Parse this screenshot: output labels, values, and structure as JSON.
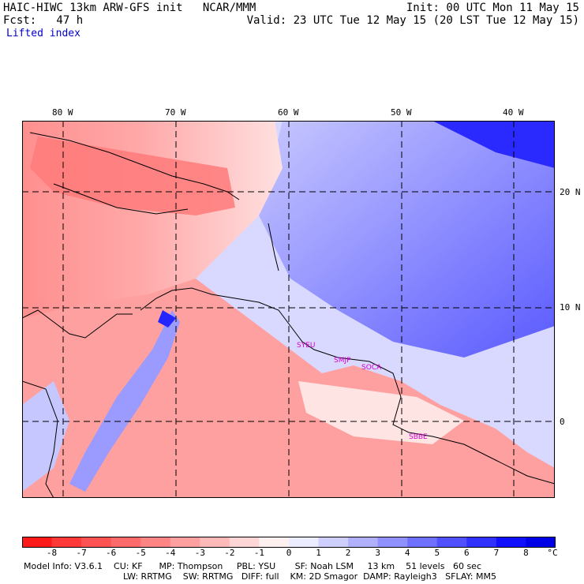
{
  "header": {
    "model_line": "HAIC-HIWC 13km ARW-GFS init   NCAR/MMM",
    "fcst_line": "Fcst:   47 h",
    "init_line": "Init: 00 UTC Mon 11 May 15",
    "valid_line": "Valid: 23 UTC Tue 12 May 15 (20 LST Tue 12 May 15)",
    "field": "Lifted index"
  },
  "map": {
    "lon_labels": [
      "80 W",
      "70 W",
      "60 W",
      "50 W",
      "40 W"
    ],
    "lat_labels": [
      "20 N",
      "10 N",
      "0"
    ],
    "station_labels": [
      "SYEU",
      "SMJP",
      "SOCA",
      "SBBE"
    ],
    "station_color": "#d200d2"
  },
  "colorbar": {
    "unit": "°C",
    "levels": [
      "-8",
      "-7",
      "-6",
      "-5",
      "-4",
      "-3",
      "-2",
      "-1",
      "0",
      "1",
      "2",
      "3",
      "4",
      "5",
      "6",
      "7",
      "8"
    ],
    "colors": [
      "#ff1a1a",
      "#ff3838",
      "#ff5252",
      "#ff6b6b",
      "#ff8585",
      "#ffa0a0",
      "#ffb9b9",
      "#ffd6d6",
      "#fff0f0",
      "#ececff",
      "#cfcfff",
      "#b0b0ff",
      "#9090ff",
      "#7070ff",
      "#5050ff",
      "#3030ff",
      "#1010ff",
      "#0000e6"
    ]
  },
  "info": {
    "line1": "Model Info: V3.6.1    CU: KF      MP: Thompson     PBL: YSU       SF: Noah LSM     13 km    51 levels   60 sec",
    "line2": "LW: RRTMG    SW: RRTMG   DIFF: full    KM: 2D Smagor  DAMP: Rayleigh3   SFLAY: MM5"
  }
}
